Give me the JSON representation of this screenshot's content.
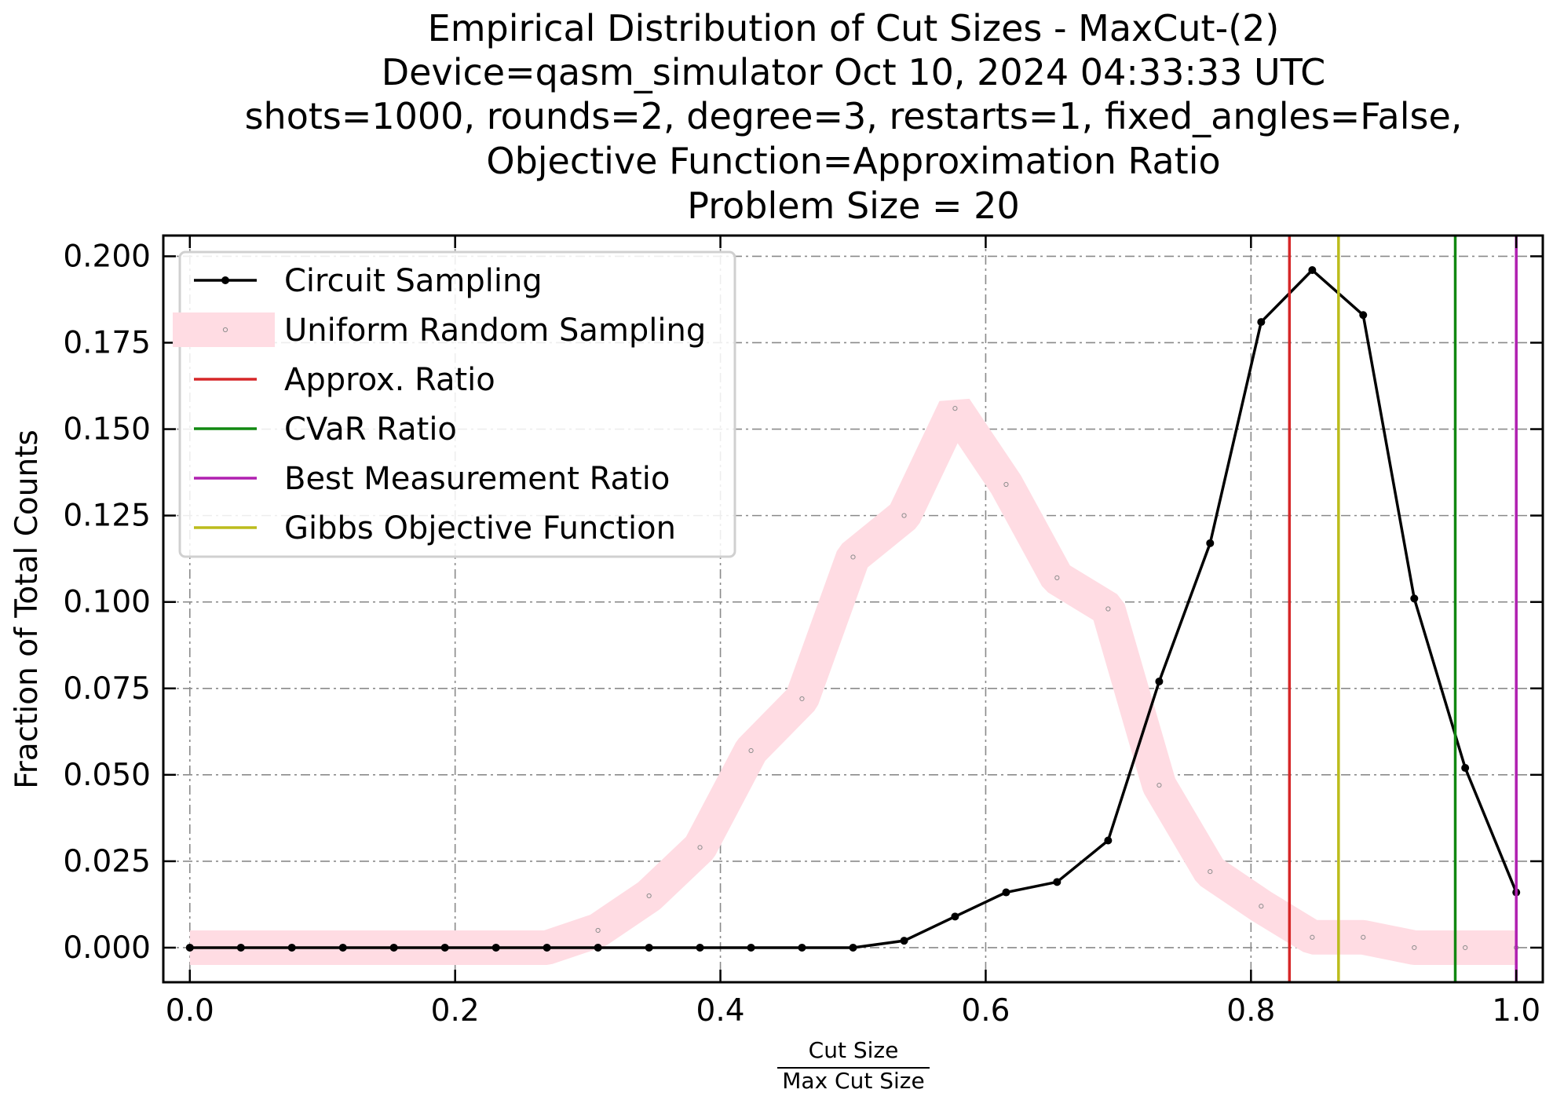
{
  "chart_data": {
    "type": "line",
    "title": [
      "Empirical Distribution of Cut Sizes - MaxCut-(2)",
      "Device=qasm_simulator  Oct 10, 2024 04:33:33 UTC",
      "shots=1000, rounds=2, degree=3, restarts=1, fixed_angles=False,",
      "Objective Function=Approximation Ratio",
      "Problem Size = 20"
    ],
    "xlabel_numerator": "Cut Size",
    "xlabel_denominator": "Max Cut Size",
    "ylabel": "Fraction of Total Counts",
    "xlim": [
      -0.02,
      1.02
    ],
    "ylim": [
      -0.01,
      0.206
    ],
    "xticks": [
      0.0,
      0.2,
      0.4,
      0.6,
      0.8,
      1.0
    ],
    "xtick_labels": [
      "0.0",
      "0.2",
      "0.4",
      "0.6",
      "0.8",
      "1.0"
    ],
    "yticks": [
      0.0,
      0.025,
      0.05,
      0.075,
      0.1,
      0.125,
      0.15,
      0.175,
      0.2
    ],
    "ytick_labels": [
      "0.000",
      "0.025",
      "0.050",
      "0.075",
      "0.100",
      "0.125",
      "0.150",
      "0.175",
      "0.200"
    ],
    "grid": true,
    "legend_position": "upper-left",
    "x": [
      0.0,
      0.0385,
      0.0769,
      0.1154,
      0.1538,
      0.1923,
      0.2308,
      0.2692,
      0.3077,
      0.3462,
      0.3846,
      0.4231,
      0.4615,
      0.5,
      0.5385,
      0.5769,
      0.6154,
      0.6538,
      0.6923,
      0.7308,
      0.7692,
      0.8077,
      0.8462,
      0.8846,
      0.9231,
      0.9615,
      1.0
    ],
    "series": [
      {
        "name": "Circuit Sampling",
        "color": "#000000",
        "style": "line-with-dots",
        "values": [
          0,
          0,
          0,
          0,
          0,
          0,
          0,
          0,
          0,
          0,
          0,
          0,
          0,
          0,
          0.002,
          0.009,
          0.016,
          0.019,
          0.031,
          0.077,
          0.117,
          0.181,
          0.196,
          0.183,
          0.101,
          0.052,
          0.016
        ]
      },
      {
        "name": "Uniform Random Sampling",
        "color": "#ffdce3",
        "style": "thick-band-with-small-markers",
        "values": [
          0,
          0,
          0,
          0,
          0,
          0,
          0,
          0,
          0.005,
          0.015,
          0.029,
          0.057,
          0.072,
          0.113,
          0.125,
          0.156,
          0.134,
          0.107,
          0.098,
          0.047,
          0.022,
          0.012,
          0.003,
          0.003,
          0,
          0,
          0
        ]
      }
    ],
    "vlines": [
      {
        "name": "Approx. Ratio",
        "x": 0.829,
        "color": "#d62728"
      },
      {
        "name": "CVaR Ratio",
        "x": 0.954,
        "color": "#118811"
      },
      {
        "name": "Best Measurement Ratio",
        "x": 1.0,
        "color": "#b020b0"
      },
      {
        "name": "Gibbs Objective Function",
        "x": 0.866,
        "color": "#bcbc1c"
      }
    ],
    "legend": [
      {
        "label": "Circuit Sampling",
        "color": "#000000",
        "kind": "line-dot"
      },
      {
        "label": "Uniform Random Sampling",
        "color": "#ffdce3",
        "kind": "band"
      },
      {
        "label": "Approx. Ratio",
        "color": "#d62728",
        "kind": "line"
      },
      {
        "label": "CVaR Ratio",
        "color": "#118811",
        "kind": "line"
      },
      {
        "label": "Best Measurement Ratio",
        "color": "#b020b0",
        "kind": "line"
      },
      {
        "label": "Gibbs Objective Function",
        "color": "#bcbc1c",
        "kind": "line"
      }
    ]
  }
}
